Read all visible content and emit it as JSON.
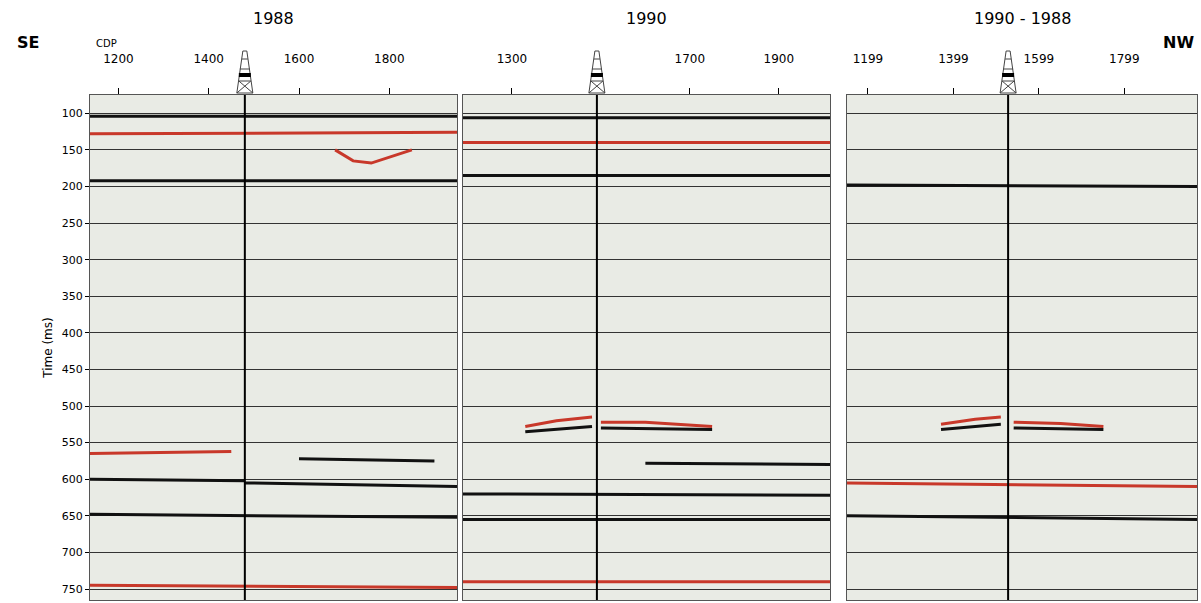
{
  "chart_data": [
    {
      "type": "line",
      "title": "1988",
      "x_label": "CDP",
      "y_label": "Time (ms)",
      "left_label": "SE",
      "xlim": [
        1137,
        1950
      ],
      "xticks": [
        1200,
        1400,
        1600,
        1800
      ],
      "ylim": [
        765,
        75
      ],
      "yticks": [
        100,
        150,
        200,
        250,
        300,
        350,
        400,
        450,
        500,
        550,
        600,
        650,
        700,
        750
      ],
      "grid": true,
      "tick_labels": true,
      "well_cdp": 1480,
      "series": [
        {
          "color": "#111111",
          "x": [
            1137,
            1950
          ],
          "values": [
            104,
            104
          ]
        },
        {
          "color": "#c8382a",
          "x": [
            1137,
            1950
          ],
          "values": [
            128,
            126
          ]
        },
        {
          "color": "#c8382a",
          "x": [
            1680,
            1720,
            1760,
            1800,
            1850
          ],
          "values": [
            150,
            165,
            168,
            160,
            150
          ]
        },
        {
          "color": "#111111",
          "x": [
            1137,
            1950
          ],
          "values": [
            192,
            192
          ]
        },
        {
          "color": "#c8382a",
          "x": [
            1137,
            1450
          ],
          "values": [
            565,
            562
          ]
        },
        {
          "color": "#111111",
          "x": [
            1600,
            1900
          ],
          "values": [
            572,
            575
          ]
        },
        {
          "color": "#111111",
          "x": [
            1137,
            1480
          ],
          "values": [
            600,
            602
          ]
        },
        {
          "color": "#111111",
          "x": [
            1480,
            1950
          ],
          "values": [
            605,
            610
          ]
        },
        {
          "color": "#111111",
          "x": [
            1137,
            1950
          ],
          "values": [
            648,
            652
          ]
        },
        {
          "color": "#c8382a",
          "x": [
            1137,
            1950
          ],
          "values": [
            745,
            748
          ]
        }
      ]
    },
    {
      "type": "line",
      "title": "1990",
      "xlim": [
        1190,
        2015
      ],
      "xticks": [
        1300,
        1700,
        1900
      ],
      "ylim": [
        765,
        75
      ],
      "yticks": [
        100,
        150,
        200,
        250,
        300,
        350,
        400,
        450,
        500,
        550,
        600,
        650,
        700,
        750
      ],
      "grid": true,
      "tick_labels": "x",
      "well_cdp": 1491,
      "series": [
        {
          "color": "#111111",
          "x": [
            1190,
            2015
          ],
          "values": [
            106,
            106
          ]
        },
        {
          "color": "#c8382a",
          "x": [
            1190,
            2015
          ],
          "values": [
            140,
            140
          ]
        },
        {
          "color": "#111111",
          "x": [
            1190,
            2015
          ],
          "values": [
            185,
            185
          ]
        },
        {
          "color": "#c8382a",
          "x": [
            1330,
            1400,
            1480
          ],
          "values": [
            528,
            520,
            515
          ]
        },
        {
          "color": "#111111",
          "x": [
            1330,
            1480
          ],
          "values": [
            535,
            528
          ]
        },
        {
          "color": "#c8382a",
          "x": [
            1500,
            1600,
            1750
          ],
          "values": [
            522,
            522,
            528
          ]
        },
        {
          "color": "#111111",
          "x": [
            1500,
            1750
          ],
          "values": [
            530,
            532
          ]
        },
        {
          "color": "#111111",
          "x": [
            1600,
            2015
          ],
          "values": [
            578,
            580
          ]
        },
        {
          "color": "#111111",
          "x": [
            1190,
            2015
          ],
          "values": [
            620,
            622
          ]
        },
        {
          "color": "#111111",
          "x": [
            1190,
            2015
          ],
          "values": [
            655,
            655
          ]
        },
        {
          "color": "#c8382a",
          "x": [
            1190,
            2015
          ],
          "values": [
            740,
            740
          ]
        }
      ]
    },
    {
      "type": "line",
      "title": "1990 - 1988",
      "right_label": "NW",
      "xlim": [
        1150,
        1969
      ],
      "xticks": [
        1199,
        1399,
        1599,
        1799
      ],
      "ylim": [
        765,
        75
      ],
      "yticks": [
        100,
        150,
        200,
        250,
        300,
        350,
        400,
        450,
        500,
        550,
        600,
        650,
        700,
        750
      ],
      "grid": true,
      "tick_labels": "x",
      "well_cdp": 1527,
      "series": [
        {
          "color": "#111111",
          "x": [
            1150,
            1969
          ],
          "values": [
            198,
            200
          ]
        },
        {
          "color": "#c8382a",
          "x": [
            1370,
            1450,
            1510
          ],
          "values": [
            525,
            518,
            515
          ]
        },
        {
          "color": "#111111",
          "x": [
            1370,
            1510
          ],
          "values": [
            532,
            525
          ]
        },
        {
          "color": "#c8382a",
          "x": [
            1540,
            1650,
            1750
          ],
          "values": [
            522,
            524,
            528
          ]
        },
        {
          "color": "#111111",
          "x": [
            1540,
            1750
          ],
          "values": [
            530,
            532
          ]
        },
        {
          "color": "#c8382a",
          "x": [
            1150,
            1969
          ],
          "values": [
            605,
            610
          ]
        },
        {
          "color": "#111111",
          "x": [
            1150,
            1969
          ],
          "values": [
            650,
            655
          ]
        }
      ]
    }
  ]
}
